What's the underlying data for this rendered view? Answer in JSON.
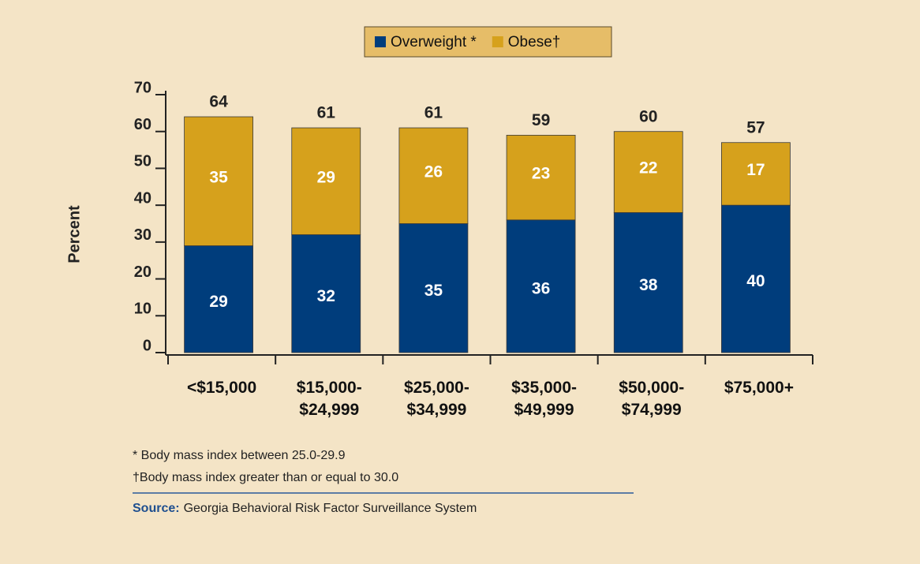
{
  "chart_data": {
    "type": "stacked_bar",
    "categories": [
      "<$15,000",
      "$15,000-\n$24,999",
      "$25,000-\n$34,999",
      "$35,000-\n$49,999",
      "$50,000-\n$74,999",
      "$75,000+"
    ],
    "series": [
      {
        "name": "Overweight *",
        "color": "#003d7c",
        "values": [
          29,
          32,
          35,
          36,
          38,
          40
        ]
      },
      {
        "name": "Obese†",
        "color": "#d6a11c",
        "values": [
          35,
          29,
          26,
          23,
          22,
          17
        ]
      }
    ],
    "totals": [
      64,
      61,
      61,
      59,
      60,
      57
    ],
    "y_label": "Percent",
    "ylim": [
      0,
      70
    ],
    "yticks": [
      0,
      10,
      20,
      30,
      40,
      50,
      60,
      70
    ],
    "footnotes": [
      "* Body mass index between 25.0-29.9",
      "†Body mass index greater than or equal to 30.0"
    ],
    "source_label": "Source:",
    "source": "Georgia Behavioral Risk Factor Surveillance System"
  }
}
